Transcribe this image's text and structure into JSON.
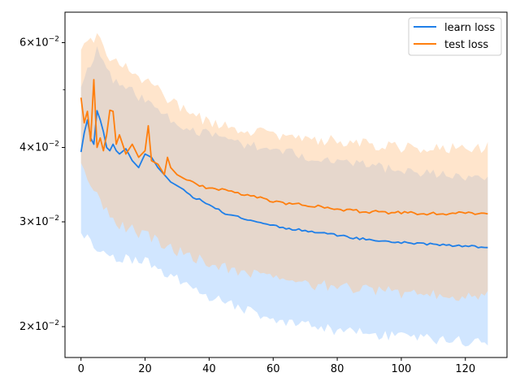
{
  "chart_data": {
    "type": "line",
    "title": "",
    "xlabel": "",
    "ylabel": "",
    "xlim": [
      -5,
      133
    ],
    "ylim": [
      0.01775,
      0.0675
    ],
    "yscale": "log",
    "grid": false,
    "legend_position": "top-right",
    "x_ticks": [
      {
        "value": 0,
        "label": "0"
      },
      {
        "value": 20,
        "label": "20"
      },
      {
        "value": 40,
        "label": "40"
      },
      {
        "value": 60,
        "label": "60"
      },
      {
        "value": 80,
        "label": "80"
      },
      {
        "value": 100,
        "label": "100"
      },
      {
        "value": 120,
        "label": "120"
      }
    ],
    "y_ticks": [
      {
        "value": 0.02,
        "base": "2",
        "exp": "−2"
      },
      {
        "value": 0.03,
        "base": "3",
        "exp": "−2"
      },
      {
        "value": 0.04,
        "base": "4",
        "exp": "−2"
      },
      {
        "value": 0.06,
        "base": "6",
        "exp": "−2"
      }
    ],
    "y_minor_ticks": [
      0.05
    ],
    "series": [
      {
        "name": "learn loss",
        "color": "#1f7fe8",
        "band_color": "#99c7ff",
        "keypoints": [
          [
            0,
            0.0393
          ],
          [
            1,
            0.0423
          ],
          [
            2,
            0.0445
          ],
          [
            3,
            0.0415
          ],
          [
            4,
            0.0405
          ],
          [
            5,
            0.0461
          ],
          [
            6,
            0.0445
          ],
          [
            7,
            0.0425
          ],
          [
            8,
            0.04
          ],
          [
            9,
            0.0395
          ],
          [
            10,
            0.0405
          ],
          [
            11,
            0.0395
          ],
          [
            12,
            0.039
          ],
          [
            14,
            0.0398
          ],
          [
            16,
            0.038
          ],
          [
            18,
            0.037
          ],
          [
            20,
            0.039
          ],
          [
            22,
            0.0385
          ],
          [
            24,
            0.037
          ],
          [
            26,
            0.036
          ],
          [
            28,
            0.035
          ],
          [
            30,
            0.0345
          ],
          [
            32,
            0.034
          ],
          [
            35,
            0.033
          ],
          [
            38,
            0.0325
          ],
          [
            40,
            0.032
          ],
          [
            45,
            0.031
          ],
          [
            50,
            0.0305
          ],
          [
            55,
            0.03
          ],
          [
            60,
            0.0296
          ],
          [
            65,
            0.0292
          ],
          [
            70,
            0.029
          ],
          [
            75,
            0.0288
          ],
          [
            80,
            0.0285
          ],
          [
            85,
            0.0282
          ],
          [
            90,
            0.028
          ],
          [
            95,
            0.0278
          ],
          [
            100,
            0.0277
          ],
          [
            105,
            0.0276
          ],
          [
            110,
            0.0275
          ],
          [
            115,
            0.0274
          ],
          [
            120,
            0.0273
          ],
          [
            127,
            0.0272
          ]
        ],
        "upper_keypoints": [
          [
            0,
            0.051
          ],
          [
            5,
            0.0585
          ],
          [
            10,
            0.052
          ],
          [
            20,
            0.048
          ],
          [
            30,
            0.044
          ],
          [
            40,
            0.042
          ],
          [
            60,
            0.0395
          ],
          [
            80,
            0.038
          ],
          [
            100,
            0.0365
          ],
          [
            127,
            0.0355
          ]
        ],
        "lower_keypoints": [
          [
            0,
            0.029
          ],
          [
            5,
            0.027
          ],
          [
            10,
            0.0262
          ],
          [
            20,
            0.0258
          ],
          [
            30,
            0.024
          ],
          [
            40,
            0.0225
          ],
          [
            60,
            0.0205
          ],
          [
            80,
            0.0197
          ],
          [
            100,
            0.0192
          ],
          [
            127,
            0.0188
          ]
        ],
        "mean_noise": 0.008,
        "band_noise": 0.04,
        "seed": 11
      },
      {
        "name": "test loss",
        "color": "#ff7f0e",
        "band_color": "#ffc58f",
        "keypoints": [
          [
            0,
            0.0485
          ],
          [
            1,
            0.044
          ],
          [
            2,
            0.046
          ],
          [
            3,
            0.041
          ],
          [
            4,
            0.052
          ],
          [
            5,
            0.04
          ],
          [
            6,
            0.0415
          ],
          [
            7,
            0.0395
          ],
          [
            8,
            0.042
          ],
          [
            9,
            0.0462
          ],
          [
            10,
            0.046
          ],
          [
            11,
            0.0405
          ],
          [
            12,
            0.042
          ],
          [
            14,
            0.039
          ],
          [
            16,
            0.0405
          ],
          [
            18,
            0.0385
          ],
          [
            20,
            0.0395
          ],
          [
            21,
            0.0435
          ],
          [
            22,
            0.038
          ],
          [
            24,
            0.0375
          ],
          [
            26,
            0.036
          ],
          [
            27,
            0.0385
          ],
          [
            28,
            0.037
          ],
          [
            30,
            0.036
          ],
          [
            32,
            0.0355
          ],
          [
            35,
            0.035
          ],
          [
            40,
            0.034
          ],
          [
            45,
            0.034
          ],
          [
            50,
            0.0335
          ],
          [
            55,
            0.033
          ],
          [
            60,
            0.0325
          ],
          [
            65,
            0.0322
          ],
          [
            70,
            0.032
          ],
          [
            75,
            0.0318
          ],
          [
            80,
            0.0315
          ],
          [
            85,
            0.0313
          ],
          [
            90,
            0.0312
          ],
          [
            95,
            0.0311
          ],
          [
            100,
            0.0311
          ],
          [
            105,
            0.031
          ],
          [
            110,
            0.031
          ],
          [
            115,
            0.031
          ],
          [
            120,
            0.031
          ],
          [
            127,
            0.0309
          ]
        ],
        "upper_keypoints": [
          [
            0,
            0.059
          ],
          [
            5,
            0.061
          ],
          [
            10,
            0.056
          ],
          [
            20,
            0.052
          ],
          [
            30,
            0.047
          ],
          [
            40,
            0.044
          ],
          [
            60,
            0.042
          ],
          [
            80,
            0.041
          ],
          [
            100,
            0.04
          ],
          [
            127,
            0.04
          ]
        ],
        "lower_keypoints": [
          [
            0,
            0.037
          ],
          [
            5,
            0.0335
          ],
          [
            10,
            0.03
          ],
          [
            20,
            0.0285
          ],
          [
            30,
            0.0268
          ],
          [
            40,
            0.0255
          ],
          [
            60,
            0.024
          ],
          [
            80,
            0.0233
          ],
          [
            100,
            0.0228
          ],
          [
            127,
            0.0225
          ]
        ],
        "mean_noise": 0.012,
        "band_noise": 0.045,
        "seed": 29
      }
    ],
    "n_points": 128
  }
}
